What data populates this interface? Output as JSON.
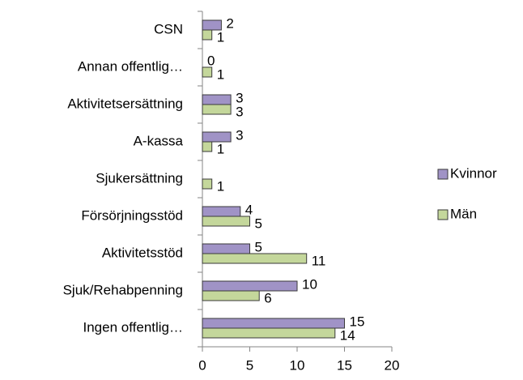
{
  "chart_data": {
    "type": "bar",
    "orientation": "horizontal",
    "categories": [
      "CSN",
      "Annan offentlig…",
      "Aktivitetsersättning",
      "A-kassa",
      "Sjukersättning",
      "Försörjningsstöd",
      "Aktivitetsstöd",
      "Sjuk/Rehabpenning",
      "Ingen offentlig…"
    ],
    "series": [
      {
        "name": "Kvinnor",
        "color": "#a093c6",
        "values": [
          2,
          0,
          3,
          3,
          0,
          4,
          5,
          10,
          15
        ],
        "value_labels": [
          "2",
          "0",
          "3",
          "3",
          null,
          "4",
          "5",
          "10",
          "15"
        ]
      },
      {
        "name": "Män",
        "color": "#c4d79b",
        "values": [
          1,
          1,
          3,
          1,
          1,
          5,
          11,
          6,
          14
        ],
        "value_labels": [
          "1",
          "1",
          "3",
          "1",
          "1",
          "5",
          "11",
          "6",
          "14"
        ]
      }
    ],
    "xlim": [
      0,
      20
    ],
    "xticks": [
      0,
      5,
      10,
      15,
      20
    ],
    "legend": "right"
  }
}
